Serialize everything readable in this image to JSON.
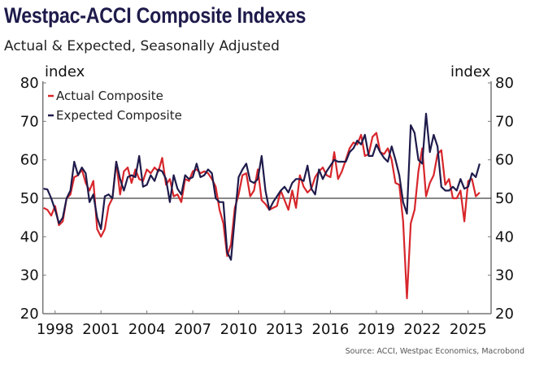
{
  "chart_data": {
    "type": "line",
    "title": "Westpac-ACCI Composite Indexes",
    "subtitle": "Actual & Expected, Seasonally Adjusted",
    "ylabel_left": "index",
    "ylabel_right": "index",
    "source": "Source: ACCI, Westpac Economics, Macrobond",
    "ylim": [
      20,
      80
    ],
    "yticks": [
      "20",
      "30",
      "40",
      "50",
      "60",
      "70",
      "80"
    ],
    "xlim": [
      1997.2,
      2026.5
    ],
    "xticks": [
      "1998",
      "2001",
      "2004",
      "2007",
      "2010",
      "2013",
      "2016",
      "2019",
      "2022",
      "2025"
    ],
    "reference_line": 50,
    "grid": false,
    "legend_position": "top-left",
    "x_start": 1997.25,
    "x_step_years": 0.25,
    "series": [
      {
        "name": "Actual Composite",
        "color": "#d7262b",
        "values": [
          47.5,
          47,
          45.5,
          48,
          43,
          44,
          50,
          51,
          55.5,
          56,
          57.5,
          54,
          52,
          54.5,
          42,
          40,
          42,
          48,
          50,
          59.5,
          51,
          57,
          58,
          54,
          57.5,
          55,
          54.5,
          57.5,
          56.5,
          58,
          57,
          60.5,
          53.5,
          55,
          50.5,
          51,
          49,
          55,
          54.5,
          57,
          57.5,
          56.5,
          57,
          56.5,
          55,
          53,
          47,
          43.5,
          35,
          38,
          47.5,
          51,
          56,
          56.5,
          50.5,
          52,
          57.5,
          49.5,
          48.5,
          47,
          47.5,
          48,
          52,
          49.5,
          47,
          52,
          47.5,
          56,
          53,
          51.5,
          52.5,
          55.5,
          57,
          58,
          56,
          55.5,
          62,
          55,
          57,
          60,
          63,
          64.5,
          64,
          66.5,
          61,
          61.5,
          66,
          67,
          62,
          61.5,
          63,
          60,
          54,
          53.5,
          44,
          24,
          43.5,
          47,
          57,
          63,
          50.5,
          54,
          56,
          61.5,
          62.5,
          53.5,
          55,
          50,
          50,
          52,
          44,
          54.5,
          55,
          50.5,
          51.5
        ]
      },
      {
        "name": "Expected Composite",
        "color": "#1e1b4b",
        "values": [
          52.5,
          52.3,
          50,
          47,
          43.5,
          45,
          50,
          52,
          59.5,
          56,
          58,
          56.5,
          49,
          51,
          45,
          42,
          50.5,
          51,
          50,
          59.5,
          55,
          52,
          55.5,
          56,
          55.5,
          61,
          53,
          53.5,
          56,
          54.5,
          57.5,
          57,
          55,
          49,
          56,
          52.5,
          51,
          56,
          55,
          55.5,
          59,
          55.5,
          56,
          57.5,
          56.5,
          50,
          49,
          49,
          36,
          34,
          45,
          55.5,
          57.5,
          59,
          54.5,
          54,
          55,
          61,
          52,
          47,
          49,
          50.5,
          52,
          53,
          51.5,
          54,
          55,
          55,
          54.5,
          58.5,
          52.5,
          51,
          57.5,
          55,
          57,
          58.5,
          60,
          59.5,
          59.5,
          59.5,
          62,
          63,
          65,
          64,
          66.5,
          61,
          61,
          64,
          62,
          60.5,
          59.5,
          63.5,
          60,
          56,
          49,
          46,
          69,
          67,
          60,
          59,
          72,
          62,
          66.5,
          63.5,
          53,
          52,
          52,
          53,
          52,
          55,
          52.5,
          53,
          56.5,
          55.5,
          59
        ]
      }
    ]
  }
}
